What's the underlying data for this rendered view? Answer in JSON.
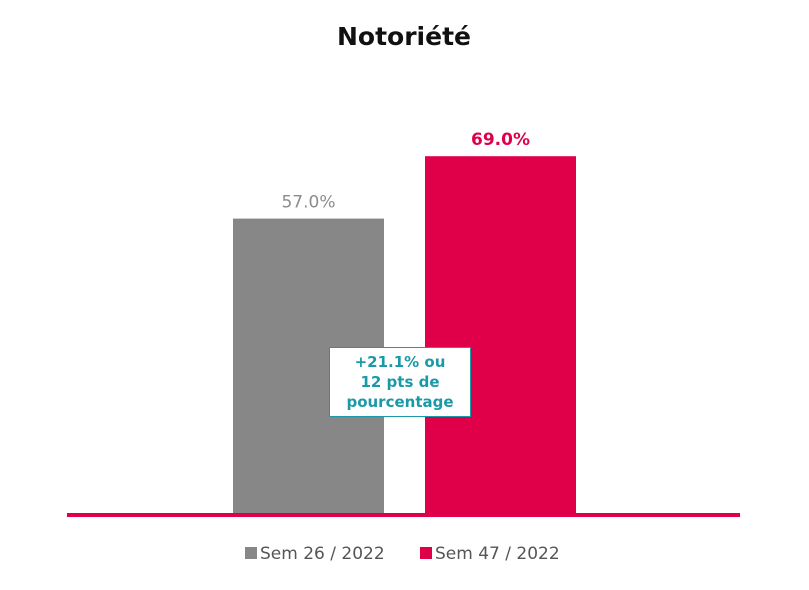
{
  "chart_data": {
    "type": "bar",
    "title": "Notoriété",
    "xlabel": "",
    "ylabel": "",
    "categories": [
      "Sem 26 / 2022",
      "Sem 47 / 2022"
    ],
    "values": [
      57.0,
      69.0
    ],
    "value_labels": [
      "57.0%",
      "69.0%"
    ],
    "colors": [
      "#878787",
      "#e0004a"
    ],
    "label_colors": [
      "#8c8c8c",
      "#e0004a"
    ],
    "ylim": [
      0,
      100
    ],
    "grid": false,
    "legend": {
      "position": "bottom",
      "entries": [
        "Sem 26 / 2022",
        "Sem 47 / 2022"
      ]
    },
    "annotation": "+21.1% ou\n12 pts de\npourcentage",
    "axis_color": "#e0004a"
  }
}
